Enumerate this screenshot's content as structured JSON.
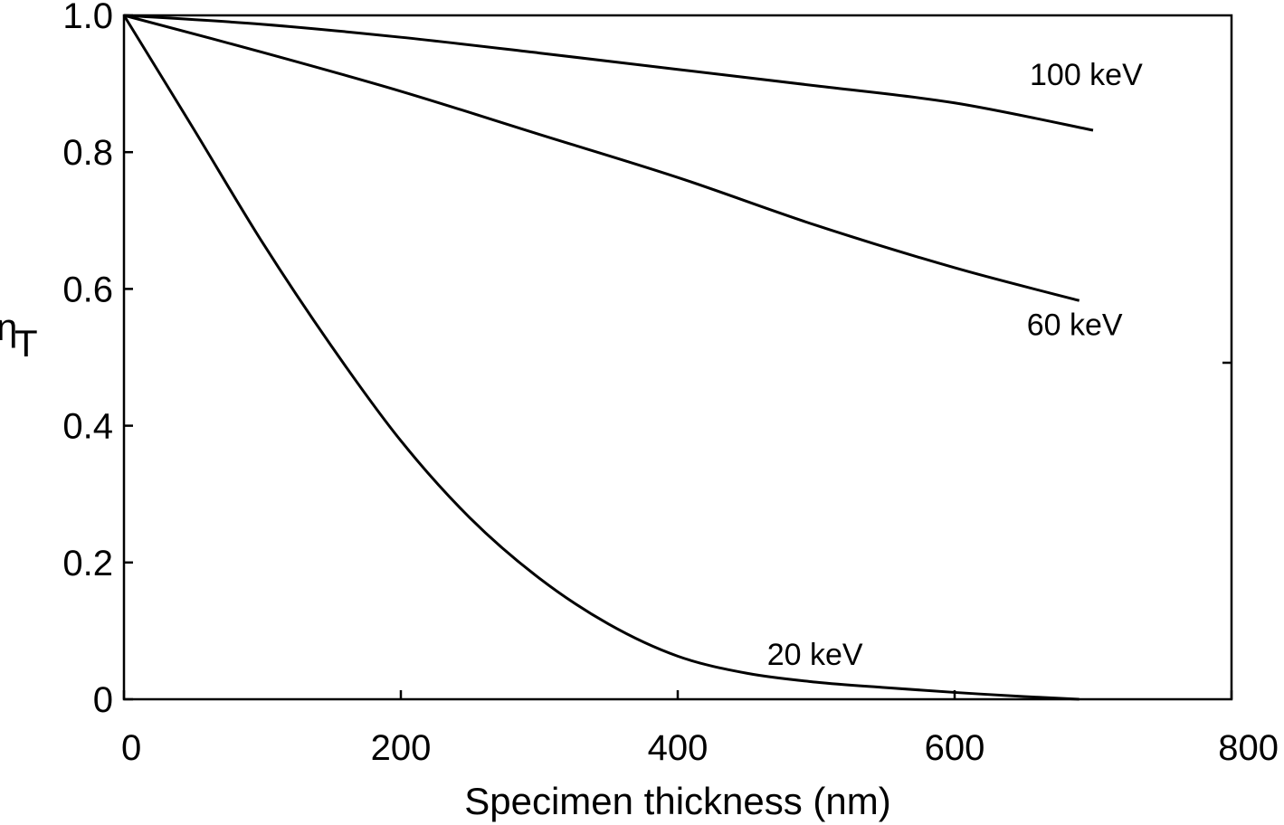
{
  "chart_data": {
    "type": "line",
    "title": "",
    "xlabel": "Specimen thickness (nm)",
    "ylabel_main": "η",
    "ylabel_sub": "T",
    "xlim": [
      0,
      800
    ],
    "ylim": [
      0,
      1.0
    ],
    "xticks": [
      0,
      200,
      400,
      600,
      800
    ],
    "xtick_labels": [
      "0",
      "200",
      "400",
      "600",
      "800"
    ],
    "yticks": [
      0,
      0.2,
      0.4,
      0.6,
      0.8,
      1.0
    ],
    "ytick_labels": [
      "0",
      "0.2",
      "0.4",
      "0.6",
      "0.8",
      "1.0"
    ],
    "grid": false,
    "legend": "none",
    "color": "#000000",
    "series": [
      {
        "name": "100 keV",
        "x": [
          0,
          100,
          200,
          300,
          400,
          500,
          600,
          700
        ],
        "y": [
          1.0,
          0.987,
          0.968,
          0.945,
          0.921,
          0.897,
          0.872,
          0.832
        ]
      },
      {
        "name": "60 keV",
        "x": [
          0,
          100,
          200,
          300,
          400,
          500,
          600,
          690
        ],
        "y": [
          1.0,
          0.946,
          0.889,
          0.826,
          0.763,
          0.693,
          0.631,
          0.583
        ]
      },
      {
        "name": "20 keV",
        "x": [
          0,
          50,
          100,
          150,
          200,
          250,
          300,
          350,
          400,
          450,
          500,
          550,
          600,
          650,
          690
        ],
        "y": [
          1.0,
          0.835,
          0.668,
          0.516,
          0.378,
          0.265,
          0.177,
          0.11,
          0.063,
          0.038,
          0.025,
          0.017,
          0.01,
          0.004,
          0.0
        ]
      }
    ]
  }
}
